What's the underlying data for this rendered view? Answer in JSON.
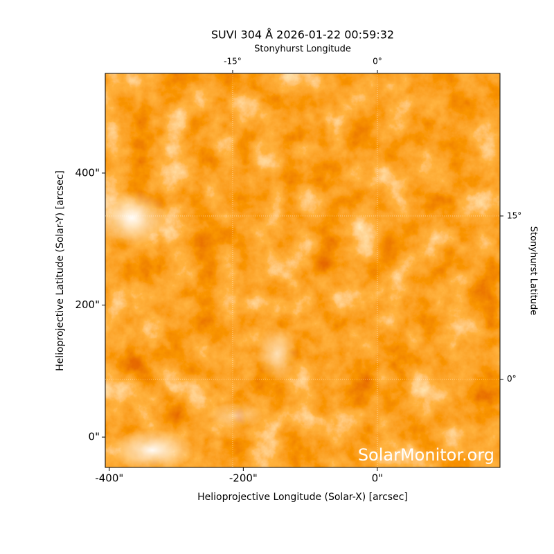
{
  "chart_data": {
    "type": "image",
    "title": "SUVI 304 Å 2026-01-22 00:59:32",
    "xlabel": "Helioprojective Longitude (Solar-X) [arcsec]",
    "ylabel": "Helioprojective Latitude (Solar-Y) [arcsec]",
    "x2label": "Stonyhurst Longitude",
    "y2label": "Stonyhurst Latitude",
    "watermark": "SolarMonitor.org",
    "xlim": [
      -406,
      183
    ],
    "ylim": [
      -46,
      551
    ],
    "xticks": [
      {
        "value": -400,
        "label": "-400\""
      },
      {
        "value": -200,
        "label": "-200\""
      },
      {
        "value": 0,
        "label": "0\""
      }
    ],
    "yticks": [
      {
        "value": 0,
        "label": "0\""
      },
      {
        "value": 200,
        "label": "200\""
      },
      {
        "value": 400,
        "label": "400\""
      }
    ],
    "x2lim": [
      -28.2,
      12.7
    ],
    "y2lim": [
      -8.1,
      28.1
    ],
    "x2ticks": [
      {
        "value": -15,
        "label": "-15°"
      },
      {
        "value": 0,
        "label": "0°"
      }
    ],
    "y2ticks": [
      {
        "value": 0,
        "label": "0°"
      },
      {
        "value": 15,
        "label": "15°"
      }
    ],
    "grid": true
  }
}
